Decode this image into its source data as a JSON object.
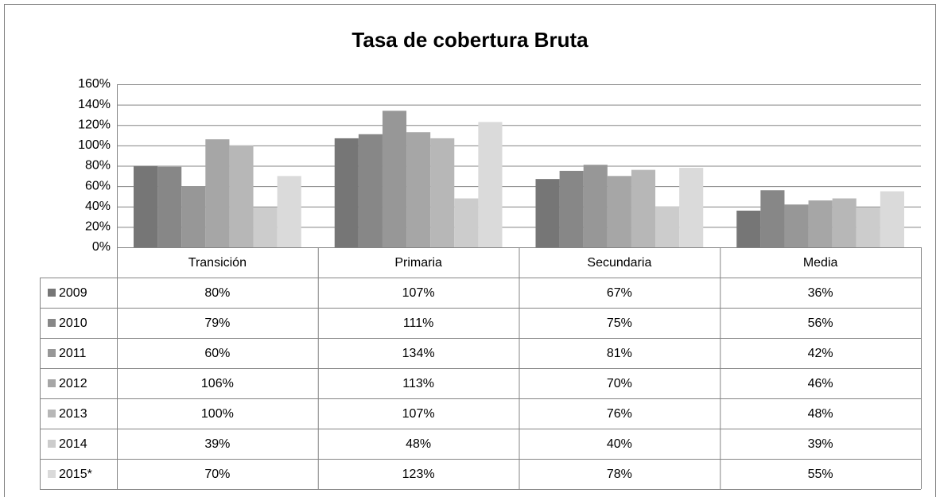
{
  "chart_data": {
    "type": "bar",
    "title": "Tasa de cobertura Bruta",
    "categories": [
      "Transición",
      "Primaria",
      "Secundaria",
      "Media"
    ],
    "series": [
      {
        "name": "2009",
        "color": "#767676",
        "values": [
          80,
          107,
          67,
          36
        ],
        "value_labels": [
          "80%",
          "107%",
          "67%",
          "36%"
        ]
      },
      {
        "name": "2010",
        "color": "#878787",
        "values": [
          79,
          111,
          75,
          56
        ],
        "value_labels": [
          "79%",
          "111%",
          "75%",
          "56%"
        ]
      },
      {
        "name": "2011",
        "color": "#979797",
        "values": [
          60,
          134,
          81,
          42
        ],
        "value_labels": [
          "60%",
          "134%",
          "81%",
          "42%"
        ]
      },
      {
        "name": "2012",
        "color": "#a6a6a6",
        "values": [
          106,
          113,
          70,
          46
        ],
        "value_labels": [
          "106%",
          "113%",
          "70%",
          "46%"
        ]
      },
      {
        "name": "2013",
        "color": "#b7b7b7",
        "values": [
          100,
          107,
          76,
          48
        ],
        "value_labels": [
          "100%",
          "107%",
          "76%",
          "48%"
        ]
      },
      {
        "name": "2014",
        "color": "#cccccc",
        "values": [
          39,
          48,
          40,
          39
        ],
        "value_labels": [
          "39%",
          "48%",
          "40%",
          "39%"
        ]
      },
      {
        "name": "2015*",
        "color": "#dadada",
        "values": [
          70,
          123,
          78,
          55
        ],
        "value_labels": [
          "70%",
          "123%",
          "78%",
          "55%"
        ]
      }
    ],
    "ylim": [
      0,
      160
    ],
    "yticks": [
      {
        "value": 0,
        "label": "0%"
      },
      {
        "value": 20,
        "label": "20%"
      },
      {
        "value": 40,
        "label": "40%"
      },
      {
        "value": 60,
        "label": "60%"
      },
      {
        "value": 80,
        "label": "80%"
      },
      {
        "value": 100,
        "label": "100%"
      },
      {
        "value": 120,
        "label": "120%"
      },
      {
        "value": 140,
        "label": "140%"
      },
      {
        "value": 160,
        "label": "160%"
      }
    ],
    "grid": true
  }
}
